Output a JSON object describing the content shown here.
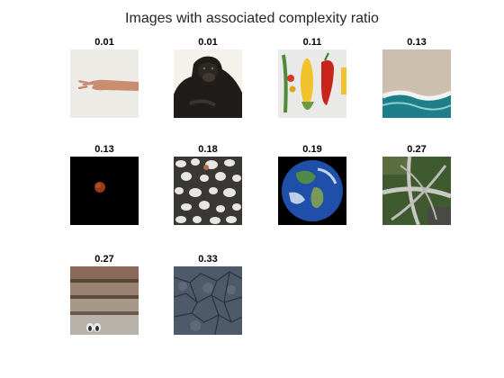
{
  "figure": {
    "title": "Images with associated complexity ratio"
  },
  "images": [
    {
      "ratio": "0.01",
      "subject": "hand"
    },
    {
      "ratio": "0.01",
      "subject": "gorilla"
    },
    {
      "ratio": "0.11",
      "subject": "vegetables"
    },
    {
      "ratio": "0.13",
      "subject": "beach-waves"
    },
    {
      "ratio": "0.13",
      "subject": "lunar-eclipse"
    },
    {
      "ratio": "0.18",
      "subject": "pebbles"
    },
    {
      "ratio": "0.19",
      "subject": "earth"
    },
    {
      "ratio": "0.27",
      "subject": "highway-interchange"
    },
    {
      "ratio": "0.27",
      "subject": "stone-steps"
    },
    {
      "ratio": "0.33",
      "subject": "cracked-ground"
    }
  ]
}
